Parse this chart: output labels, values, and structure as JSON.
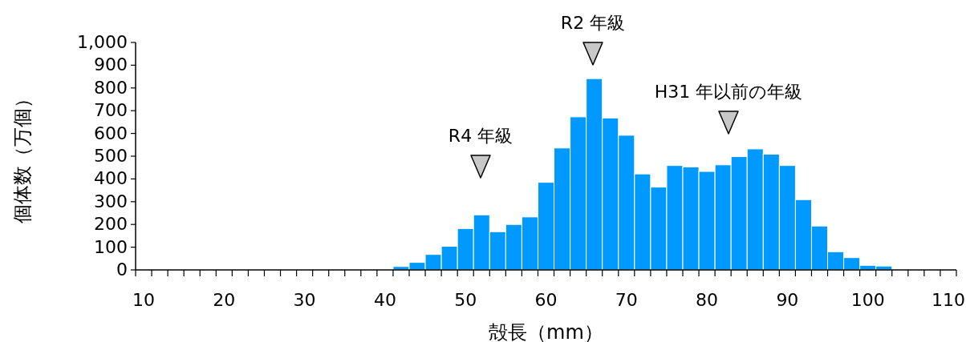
{
  "chart_data": {
    "type": "histogram",
    "xlabel": "殻長（mm）",
    "ylabel": "個体数（万個）",
    "bins": [
      41,
      43,
      45,
      47,
      49,
      51,
      53,
      55,
      57,
      59,
      61,
      63,
      65,
      67,
      69,
      71,
      73,
      75,
      77,
      79,
      81,
      83,
      85,
      87,
      89,
      91,
      93,
      95,
      97,
      99,
      101,
      103
    ],
    "values": [
      15,
      33,
      68,
      104,
      182,
      242,
      168,
      200,
      233,
      385,
      536,
      673,
      841,
      668,
      592,
      422,
      364,
      459,
      453,
      433,
      462,
      498,
      532,
      509,
      459,
      309,
      193,
      80,
      54,
      20,
      17
    ],
    "color": "#0099ff",
    "xlim": [
      9,
      111
    ],
    "xticks": [
      {
        "value": 9,
        "label": null
      },
      {
        "value": 10,
        "label": "10"
      },
      {
        "value": 11,
        "label": null
      },
      {
        "value": 13,
        "label": null
      },
      {
        "value": 15,
        "label": null
      },
      {
        "value": 17,
        "label": null
      },
      {
        "value": 19,
        "label": null
      },
      {
        "value": 20,
        "label": "20"
      },
      {
        "value": 21,
        "label": null
      },
      {
        "value": 23,
        "label": null
      },
      {
        "value": 25,
        "label": null
      },
      {
        "value": 27,
        "label": null
      },
      {
        "value": 29,
        "label": null
      },
      {
        "value": 30,
        "label": "30"
      },
      {
        "value": 31,
        "label": null
      },
      {
        "value": 33,
        "label": null
      },
      {
        "value": 35,
        "label": null
      },
      {
        "value": 37,
        "label": null
      },
      {
        "value": 39,
        "label": null
      },
      {
        "value": 40,
        "label": "40"
      },
      {
        "value": 41,
        "label": null
      },
      {
        "value": 43,
        "label": null
      },
      {
        "value": 45,
        "label": null
      },
      {
        "value": 47,
        "label": null
      },
      {
        "value": 49,
        "label": null
      },
      {
        "value": 50,
        "label": "50"
      },
      {
        "value": 51,
        "label": null
      },
      {
        "value": 53,
        "label": null
      },
      {
        "value": 55,
        "label": null
      },
      {
        "value": 57,
        "label": null
      },
      {
        "value": 59,
        "label": null
      },
      {
        "value": 60,
        "label": "60"
      },
      {
        "value": 61,
        "label": null
      },
      {
        "value": 63,
        "label": null
      },
      {
        "value": 65,
        "label": null
      },
      {
        "value": 67,
        "label": null
      },
      {
        "value": 69,
        "label": null
      },
      {
        "value": 70,
        "label": "70"
      },
      {
        "value": 71,
        "label": null
      },
      {
        "value": 73,
        "label": null
      },
      {
        "value": 75,
        "label": null
      },
      {
        "value": 77,
        "label": null
      },
      {
        "value": 79,
        "label": null
      },
      {
        "value": 80,
        "label": "80"
      },
      {
        "value": 81,
        "label": null
      },
      {
        "value": 83,
        "label": null
      },
      {
        "value": 85,
        "label": null
      },
      {
        "value": 87,
        "label": null
      },
      {
        "value": 89,
        "label": null
      },
      {
        "value": 90,
        "label": "90"
      },
      {
        "value": 91,
        "label": null
      },
      {
        "value": 93,
        "label": null
      },
      {
        "value": 95,
        "label": null
      },
      {
        "value": 97,
        "label": null
      },
      {
        "value": 99,
        "label": null
      },
      {
        "value": 100,
        "label": "100"
      },
      {
        "value": 101,
        "label": null
      },
      {
        "value": 103,
        "label": null
      },
      {
        "value": 105,
        "label": null
      },
      {
        "value": 107,
        "label": null
      },
      {
        "value": 109,
        "label": null
      },
      {
        "value": 110,
        "label": "110"
      },
      {
        "value": 111,
        "label": null
      }
    ],
    "ylim": [
      0,
      1000
    ],
    "yticks": [
      0,
      100,
      200,
      300,
      400,
      500,
      600,
      700,
      800,
      900,
      {
        "value": 1000,
        "label": "1,000"
      }
    ],
    "grid": false,
    "annotations": [
      "R4 年級",
      "R2 年級",
      "H31 年以前の年級"
    ]
  }
}
